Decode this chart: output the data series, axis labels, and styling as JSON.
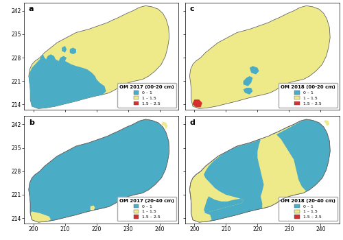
{
  "colors": {
    "blue": "#4bacc6",
    "yellow": "#eeea8a",
    "red": "#d43030",
    "background": "#ffffff"
  },
  "legend_labels": [
    "0 – 1",
    "1 – 1.5",
    "1.5 – 2.5"
  ],
  "panel_titles": [
    "OM 2017 (00-20 cm)",
    "OM 2018 (00-20 cm)",
    "OM 2017 (20-40 cm)",
    "OM 2018 (20-40 cm)"
  ],
  "panel_labels": [
    "a",
    "c",
    "b",
    "d"
  ],
  "xlim": [
    197,
    246
  ],
  "ylim": [
    212.5,
    244.5
  ],
  "xticks": [
    200,
    210,
    220,
    230,
    240
  ],
  "yticks": [
    214,
    221,
    228,
    235,
    242
  ]
}
